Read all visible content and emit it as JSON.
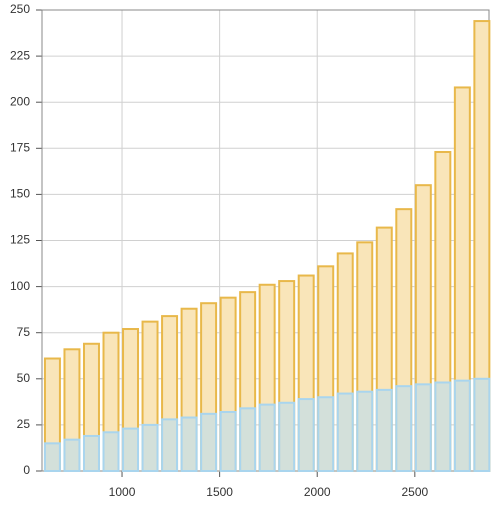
{
  "chart_data": {
    "type": "bar",
    "x": [
      600,
      700,
      800,
      900,
      1000,
      1100,
      1200,
      1300,
      1400,
      1500,
      1600,
      1700,
      1800,
      1900,
      2000,
      2100,
      2200,
      2300,
      2400,
      2500,
      2600,
      2700,
      2800
    ],
    "series": [
      {
        "color": "#e8b84a",
        "fill": "#f9e5b9",
        "values": [
          61,
          66,
          69,
          75,
          77,
          81,
          84,
          88,
          91,
          94,
          97,
          101,
          103,
          106,
          111,
          118,
          124,
          132,
          142,
          155,
          173,
          208,
          244
        ]
      },
      {
        "color": "#a9d5ee",
        "fill": "#c6dde6",
        "values": [
          15,
          17,
          19,
          21,
          23,
          25,
          28,
          29,
          31,
          32,
          34,
          36,
          37,
          39,
          40,
          42,
          43,
          44,
          46,
          47,
          48,
          49,
          50
        ]
      }
    ],
    "xlim": [
      590,
      2880
    ],
    "xticks": [
      1000,
      1500,
      2000,
      2500
    ],
    "ylim": [
      0,
      250
    ],
    "yticks": [
      0,
      25,
      50,
      75,
      100,
      125,
      150,
      175,
      200,
      225,
      250
    ],
    "grid": true
  }
}
